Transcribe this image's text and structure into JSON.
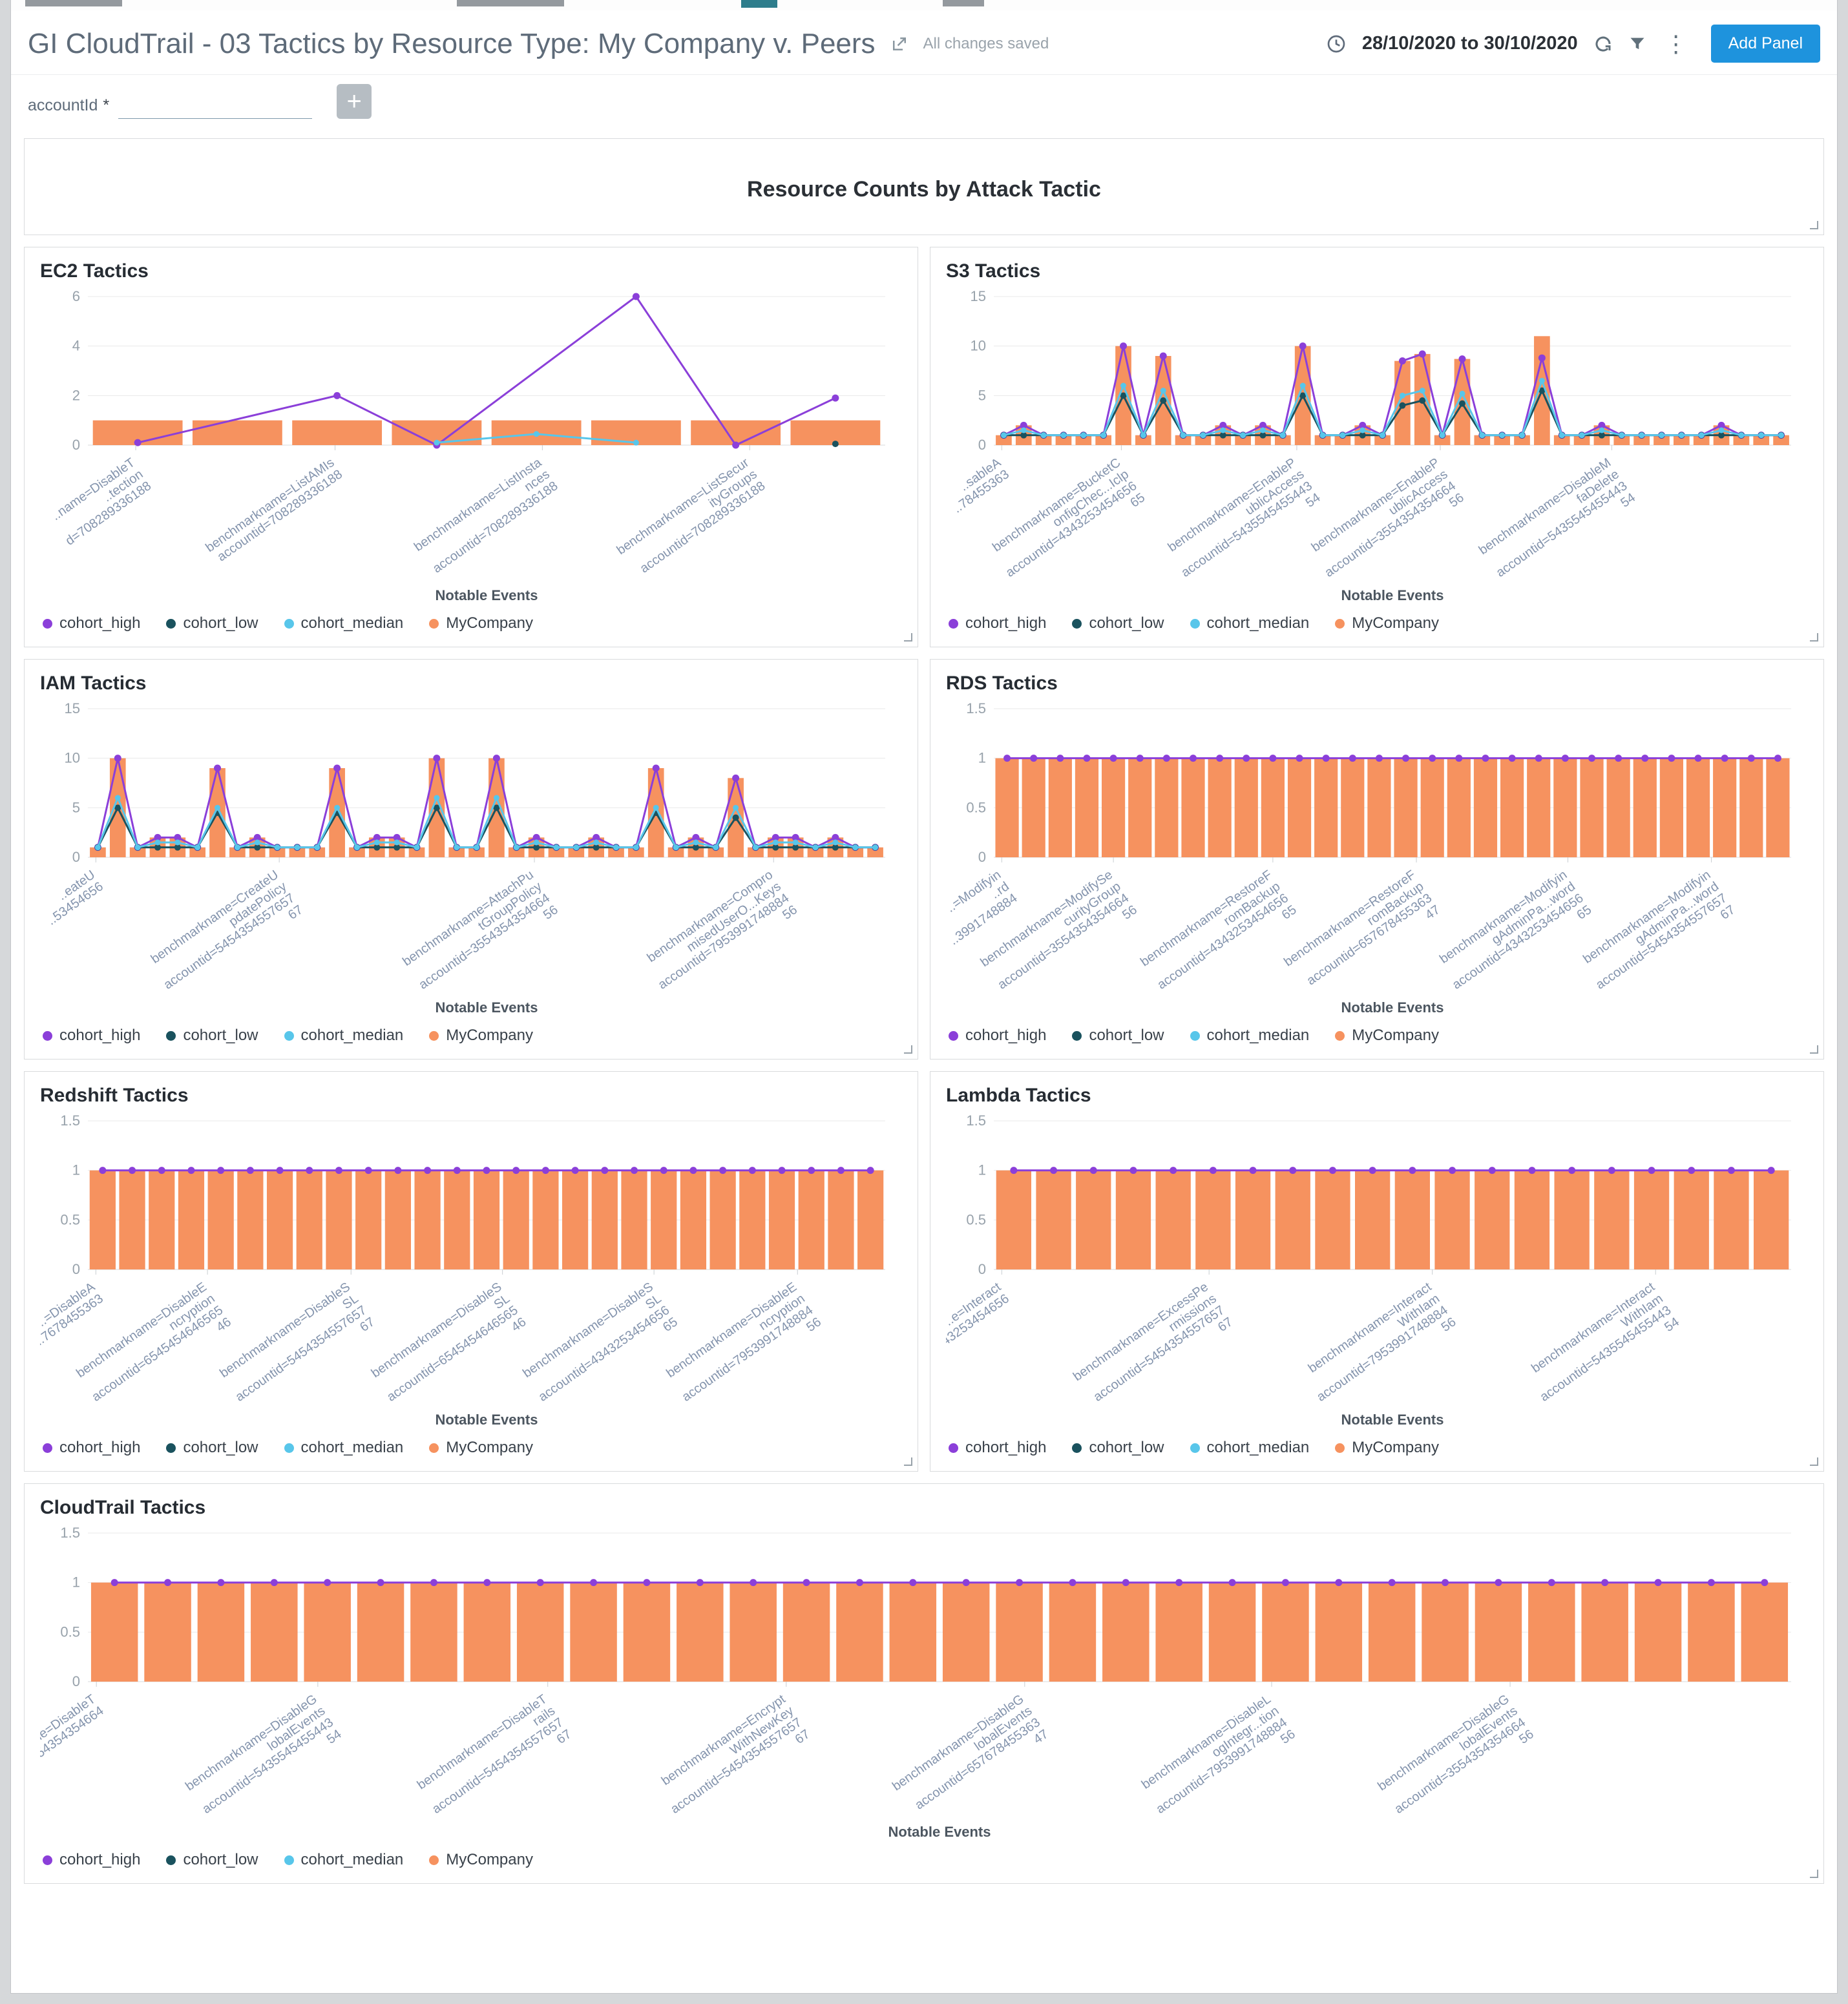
{
  "header": {
    "title": "GI CloudTrail - 03 Tactics by Resource Type: My Company v. Peers",
    "autosave": "All changes saved",
    "date_range": "28/10/2020 to 30/10/2020",
    "add_panel_label": "Add Panel"
  },
  "filters": {
    "account_label": "accountId",
    "required_marker": "*",
    "input_value": "",
    "add_button": "+"
  },
  "dashboard_title": "Resource Counts by Attack Tactic",
  "legend": [
    {
      "label": "cohort_high",
      "color": "#8b3fd9"
    },
    {
      "label": "cohort_low",
      "color": "#1a525e"
    },
    {
      "label": "cohort_median",
      "color": "#58c6ea"
    },
    {
      "label": "MyCompany",
      "color": "#f6925f"
    }
  ],
  "colors": {
    "cohort_high": "#8b3fd9",
    "cohort_low": "#1a525e",
    "cohort_median": "#58c6ea",
    "MyCompany": "#f6925f",
    "grid": "#e9e9e9",
    "axis_text": "#98a2ab",
    "tick_text": "#8494ad",
    "accent_blue": "#1e93dd"
  },
  "chart_data": [
    {
      "id": "ec2",
      "type": "bar",
      "title": "EC2 Tactics",
      "xlabel": "Notable Events",
      "ylabel": "",
      "ylim": [
        0,
        6
      ],
      "yticks": [
        0,
        2,
        4,
        6
      ],
      "grid": true,
      "legend_position": "bottom-left",
      "barw": 0.9,
      "values": [
        1,
        1,
        1,
        1,
        1,
        1,
        1,
        1
      ],
      "series": [
        {
          "name": "cohort_high",
          "values": [
            0.1,
            null,
            2,
            0,
            null,
            6,
            0,
            1.9
          ]
        },
        {
          "name": "cohort_low",
          "values": [
            null,
            null,
            null,
            null,
            null,
            null,
            null,
            0.05
          ]
        },
        {
          "name": "cohort_median",
          "values": [
            null,
            null,
            null,
            0.1,
            0.45,
            0.1,
            null,
            null
          ]
        }
      ],
      "xticks": [
        {
          "pos": 0.06,
          "lines": [
            "..name=DisableT",
            "..tection",
            "d=708289336188"
          ]
        },
        {
          "pos": 0.31,
          "lines": [
            "benchmarkname=ListAMIs",
            "accountid=708289336188"
          ]
        },
        {
          "pos": 0.57,
          "lines": [
            "benchmarkname=ListInsta",
            "nces",
            "accountid=708289336188"
          ]
        },
        {
          "pos": 0.83,
          "lines": [
            "benchmarkname=ListSecur",
            "ityGroups",
            "accountid=708289336188"
          ]
        }
      ]
    },
    {
      "id": "s3",
      "type": "bar",
      "title": "S3 Tactics",
      "xlabel": "Notable Events",
      "ylabel": "",
      "ylim": [
        0,
        15
      ],
      "yticks": [
        0,
        5,
        10,
        15
      ],
      "grid": true,
      "legend_position": "bottom-left",
      "barw": 0.8,
      "values": [
        1,
        2,
        1,
        1,
        1,
        1,
        10,
        1,
        9,
        1,
        1,
        2,
        1,
        2,
        1,
        10,
        1,
        1,
        2,
        1,
        8.5,
        9.2,
        1,
        8.7,
        1,
        1,
        1,
        11,
        1,
        1,
        2,
        1,
        1,
        1,
        1,
        1,
        2,
        1,
        1,
        1
      ],
      "series": [
        {
          "name": "cohort_high",
          "values": [
            1,
            2,
            1,
            1,
            1,
            1,
            10,
            1,
            9,
            1,
            1,
            2,
            1,
            2,
            1,
            10,
            1,
            1,
            2,
            1,
            8.5,
            9.2,
            1,
            8.7,
            1,
            1,
            1,
            8.8,
            1,
            1,
            2,
            1,
            1,
            1,
            1,
            1,
            2,
            1,
            1,
            1
          ]
        },
        {
          "name": "cohort_low",
          "values": [
            1,
            1,
            1,
            1,
            1,
            1,
            5,
            1,
            4.5,
            1,
            1,
            1,
            1,
            1,
            1,
            5,
            1,
            1,
            1,
            1,
            4,
            4.5,
            1,
            4.2,
            1,
            1,
            1,
            5.5,
            1,
            1,
            1,
            1,
            1,
            1,
            1,
            1,
            1,
            1,
            1,
            1
          ]
        },
        {
          "name": "cohort_median",
          "values": [
            1,
            1.5,
            1,
            1,
            1,
            1,
            6,
            1,
            5.5,
            1,
            1,
            1.5,
            1,
            1.5,
            1,
            6,
            1,
            1,
            1.5,
            1,
            5,
            5.5,
            1,
            5.2,
            1,
            1,
            1,
            6.5,
            1,
            1,
            1.5,
            1,
            1,
            1,
            1,
            1,
            1.5,
            1,
            1,
            1
          ]
        }
      ],
      "xticks": [
        {
          "pos": 0.01,
          "lines": [
            "..sableA",
            "..78455363"
          ]
        },
        {
          "pos": 0.16,
          "lines": [
            "benchmarkname=BucketC",
            "onfigChec...Iclp",
            "accountid=4343253454656",
            "65"
          ]
        },
        {
          "pos": 0.38,
          "lines": [
            "benchmarkname=EnableP",
            "ublicAccess",
            "accountid=5435545455443",
            "54"
          ]
        },
        {
          "pos": 0.56,
          "lines": [
            "benchmarkname=EnableP",
            "ublicAccess",
            "accountid=3554354354664",
            "56"
          ]
        },
        {
          "pos": 0.775,
          "lines": [
            "benchmarkname=DisableM",
            "faDelete",
            "accountid=5435545455443",
            "54"
          ]
        }
      ]
    },
    {
      "id": "iam",
      "type": "bar",
      "title": "IAM Tactics",
      "xlabel": "Notable Events",
      "ylabel": "",
      "ylim": [
        0,
        15
      ],
      "yticks": [
        0,
        5,
        10,
        15
      ],
      "grid": true,
      "legend_position": "bottom-left",
      "barw": 0.8,
      "values": [
        1,
        10,
        1,
        2,
        2,
        1,
        9,
        1,
        2,
        1,
        1,
        1,
        9,
        1,
        2,
        2,
        1,
        10,
        1,
        1,
        10,
        1,
        2,
        1,
        1,
        2,
        1,
        1,
        9,
        1,
        2,
        1,
        8,
        1,
        2,
        2,
        1,
        2,
        1,
        1
      ],
      "series": [
        {
          "name": "cohort_high",
          "values": [
            1,
            10,
            1,
            2,
            2,
            1,
            9,
            1,
            2,
            1,
            1,
            1,
            9,
            1,
            2,
            2,
            1,
            10,
            1,
            1,
            10,
            1,
            2,
            1,
            1,
            2,
            1,
            1,
            9,
            1,
            2,
            1,
            8,
            1,
            2,
            2,
            1,
            2,
            1,
            1
          ]
        },
        {
          "name": "cohort_low",
          "values": [
            1,
            5,
            1,
            1,
            1,
            1,
            4.5,
            1,
            1,
            1,
            1,
            1,
            4.5,
            1,
            1,
            1,
            1,
            5,
            1,
            1,
            5,
            1,
            1,
            1,
            1,
            1,
            1,
            1,
            4.5,
            1,
            1,
            1,
            4,
            1,
            1,
            1,
            1,
            1,
            1,
            1
          ]
        },
        {
          "name": "cohort_median",
          "values": [
            1,
            6,
            1,
            1.5,
            1.5,
            1,
            5,
            1,
            1.5,
            1,
            1,
            1,
            5,
            1,
            1.5,
            1.5,
            1,
            6,
            1,
            1,
            6,
            1,
            1.5,
            1,
            1,
            1.5,
            1,
            1,
            5,
            1,
            1.5,
            1,
            5,
            1,
            1.5,
            1.5,
            1,
            1.5,
            1,
            1
          ]
        }
      ],
      "xticks": [
        {
          "pos": 0.01,
          "lines": [
            "..eateU",
            "..53454656"
          ]
        },
        {
          "pos": 0.24,
          "lines": [
            "benchmarkname=CreateU",
            "pdatePolicy",
            "accountid=5454354557657",
            "67"
          ]
        },
        {
          "pos": 0.56,
          "lines": [
            "benchmarkname=AttachPu",
            "tGroupPolicy",
            "accountid=3554354354664",
            "56"
          ]
        },
        {
          "pos": 0.86,
          "lines": [
            "benchmarkname=Compro",
            "misedUserO...Keys",
            "accountid=7953991748884",
            "56"
          ]
        }
      ]
    },
    {
      "id": "rds",
      "type": "bar",
      "title": "RDS Tactics",
      "xlabel": "Notable Events",
      "ylabel": "",
      "ylim": [
        0,
        1.5
      ],
      "yticks": [
        0,
        0.5,
        1,
        1.5
      ],
      "grid": true,
      "legend_position": "bottom-left",
      "barw": 0.88,
      "values": [
        1,
        1,
        1,
        1,
        1,
        1,
        1,
        1,
        1,
        1,
        1,
        1,
        1,
        1,
        1,
        1,
        1,
        1,
        1,
        1,
        1,
        1,
        1,
        1,
        1,
        1,
        1,
        1,
        1,
        1
      ],
      "series": [
        {
          "name": "cohort_high",
          "values": [
            1,
            1,
            1,
            1,
            1,
            1,
            1,
            1,
            1,
            1,
            1,
            1,
            1,
            1,
            1,
            1,
            1,
            1,
            1,
            1,
            1,
            1,
            1,
            1,
            1,
            1,
            1,
            1,
            1,
            1
          ]
        }
      ],
      "xticks": [
        {
          "pos": 0.01,
          "lines": [
            "..=Modifyin",
            "..rd",
            "..3991748884"
          ]
        },
        {
          "pos": 0.15,
          "lines": [
            "benchmarkname=ModifySe",
            "curityGroup",
            "accountid=3554354354664",
            "56"
          ]
        },
        {
          "pos": 0.35,
          "lines": [
            "benchmarkname=RestoreF",
            "romBackup",
            "accountid=4343253454656",
            "65"
          ]
        },
        {
          "pos": 0.53,
          "lines": [
            "benchmarkname=RestoreF",
            "romBackup",
            "accountid=657678455363",
            "47"
          ]
        },
        {
          "pos": 0.72,
          "lines": [
            "benchmarkname=Modifyin",
            "gAdminPa...word",
            "accountid=4343253454656",
            "65"
          ]
        },
        {
          "pos": 0.9,
          "lines": [
            "benchmarkname=Modifyin",
            "gAdminPa...word",
            "accountid=5454354557657",
            "67"
          ]
        }
      ]
    },
    {
      "id": "redshift",
      "type": "bar",
      "title": "Redshift Tactics",
      "xlabel": "Notable Events",
      "ylabel": "",
      "ylim": [
        0,
        1.5
      ],
      "yticks": [
        0,
        0.5,
        1,
        1.5
      ],
      "grid": true,
      "legend_position": "bottom-left",
      "barw": 0.88,
      "values": [
        1,
        1,
        1,
        1,
        1,
        1,
        1,
        1,
        1,
        1,
        1,
        1,
        1,
        1,
        1,
        1,
        1,
        1,
        1,
        1,
        1,
        1,
        1,
        1,
        1,
        1,
        1
      ],
      "series": [
        {
          "name": "cohort_high",
          "values": [
            1,
            1,
            1,
            1,
            1,
            1,
            1,
            1,
            1,
            1,
            1,
            1,
            1,
            1,
            1,
            1,
            1,
            1,
            1,
            1,
            1,
            1,
            1,
            1,
            1,
            1,
            1
          ]
        }
      ],
      "xticks": [
        {
          "pos": 0.01,
          "lines": [
            "..=DisableA",
            "..7678455363"
          ]
        },
        {
          "pos": 0.15,
          "lines": [
            "benchmarkname=DisableE",
            "ncryption",
            "accountid=6545454646565",
            "46"
          ]
        },
        {
          "pos": 0.33,
          "lines": [
            "benchmarkname=DisableS",
            "SL",
            "accountid=5454354557657",
            "67"
          ]
        },
        {
          "pos": 0.52,
          "lines": [
            "benchmarkname=DisableS",
            "SL",
            "accountid=6545454646565",
            "46"
          ]
        },
        {
          "pos": 0.71,
          "lines": [
            "benchmarkname=DisableS",
            "SL",
            "accountid=4343253454656",
            "65"
          ]
        },
        {
          "pos": 0.89,
          "lines": [
            "benchmarkname=DisableE",
            "ncryption",
            "accountid=7953991748884",
            "56"
          ]
        }
      ]
    },
    {
      "id": "lambda",
      "type": "bar",
      "title": "Lambda Tactics",
      "xlabel": "Notable Events",
      "ylabel": "",
      "ylim": [
        0,
        1.5
      ],
      "yticks": [
        0,
        0.5,
        1,
        1.5
      ],
      "grid": true,
      "legend_position": "bottom-left",
      "barw": 0.88,
      "values": [
        1,
        1,
        1,
        1,
        1,
        1,
        1,
        1,
        1,
        1,
        1,
        1,
        1,
        1,
        1,
        1,
        1,
        1,
        1,
        1
      ],
      "series": [
        {
          "name": "cohort_high",
          "values": [
            1,
            1,
            1,
            1,
            1,
            1,
            1,
            1,
            1,
            1,
            1,
            1,
            1,
            1,
            1,
            1,
            1,
            1,
            1,
            1
          ]
        }
      ],
      "xticks": [
        {
          "pos": 0.01,
          "lines": [
            "..e=Interact",
            "..343253454656"
          ]
        },
        {
          "pos": 0.27,
          "lines": [
            "benchmarkname=ExcessPe",
            "rmissions",
            "accountid=5454354557657",
            "67"
          ]
        },
        {
          "pos": 0.55,
          "lines": [
            "benchmarkname=Interact",
            "WithIam",
            "accountid=7953991748884",
            "56"
          ]
        },
        {
          "pos": 0.83,
          "lines": [
            "benchmarkname=Interact",
            "WithIam",
            "accountid=5435545455443",
            "54"
          ]
        }
      ]
    },
    {
      "id": "cloudtrail",
      "type": "bar",
      "title": "CloudTrail Tactics",
      "xlabel": "Notable Events",
      "ylabel": "",
      "ylim": [
        0,
        1.5
      ],
      "yticks": [
        0,
        0.5,
        1,
        1.5
      ],
      "grid": true,
      "legend_position": "bottom-left",
      "barw": 0.88,
      "values": [
        1,
        1,
        1,
        1,
        1,
        1,
        1,
        1,
        1,
        1,
        1,
        1,
        1,
        1,
        1,
        1,
        1,
        1,
        1,
        1,
        1,
        1,
        1,
        1,
        1,
        1,
        1,
        1,
        1,
        1,
        1,
        1
      ],
      "series": [
        {
          "name": "cohort_high",
          "values": [
            1,
            1,
            1,
            1,
            1,
            1,
            1,
            1,
            1,
            1,
            1,
            1,
            1,
            1,
            1,
            1,
            1,
            1,
            1,
            1,
            1,
            1,
            1,
            1,
            1,
            1,
            1,
            1,
            1,
            1,
            1,
            1
          ]
        }
      ],
      "xticks": [
        {
          "pos": 0.005,
          "lines": [
            "..ne=DisableT",
            "..554354354664"
          ]
        },
        {
          "pos": 0.135,
          "lines": [
            "benchmarkname=DisableG",
            "lobalEvents",
            "accountid=5435545455443",
            "54"
          ]
        },
        {
          "pos": 0.27,
          "lines": [
            "benchmarkname=DisableT",
            "rails",
            "accountid=5454354557657",
            "67"
          ]
        },
        {
          "pos": 0.41,
          "lines": [
            "benchmarkname=Encrypt",
            "WithNewKey",
            "accountid=5454354557657",
            "67"
          ]
        },
        {
          "pos": 0.55,
          "lines": [
            "benchmarkname=DisableG",
            "lobalEvents",
            "accountid=657678455363",
            "47"
          ]
        },
        {
          "pos": 0.695,
          "lines": [
            "benchmarkname=DisableL",
            "ogIntegr...tion",
            "accountid=7953991748884",
            "56"
          ]
        },
        {
          "pos": 0.835,
          "lines": [
            "benchmarkname=DisableG",
            "lobalEvents",
            "accountid=3554354354664",
            "56"
          ]
        }
      ]
    }
  ]
}
